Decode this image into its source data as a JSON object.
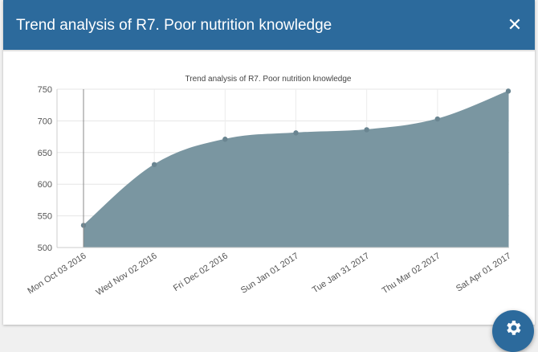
{
  "modal": {
    "title": "Trend analysis of R7. Poor nutrition knowledge",
    "close_label": "✕"
  },
  "chart_data": {
    "type": "area",
    "title": "Trend analysis of R7. Poor nutrition knowledge",
    "xlabel": "",
    "ylabel": "",
    "categories": [
      "Mon Oct 03 2016",
      "Wed Nov 02 2016",
      "Fri Dec 02 2016",
      "Sun Jan 01 2017",
      "Tue Jan 31 2017",
      "Thu Mar 02 2017",
      "Sat Apr 01 2017"
    ],
    "values": [
      535,
      631,
      671,
      681,
      686,
      703,
      747
    ],
    "ylim": [
      500,
      750
    ],
    "yticks": [
      500,
      550,
      600,
      650,
      700,
      750
    ],
    "grid": true,
    "fill_color": "#7a96a1",
    "marker_color": "#6a8591"
  },
  "fab": {
    "icon": "gear-icon"
  }
}
